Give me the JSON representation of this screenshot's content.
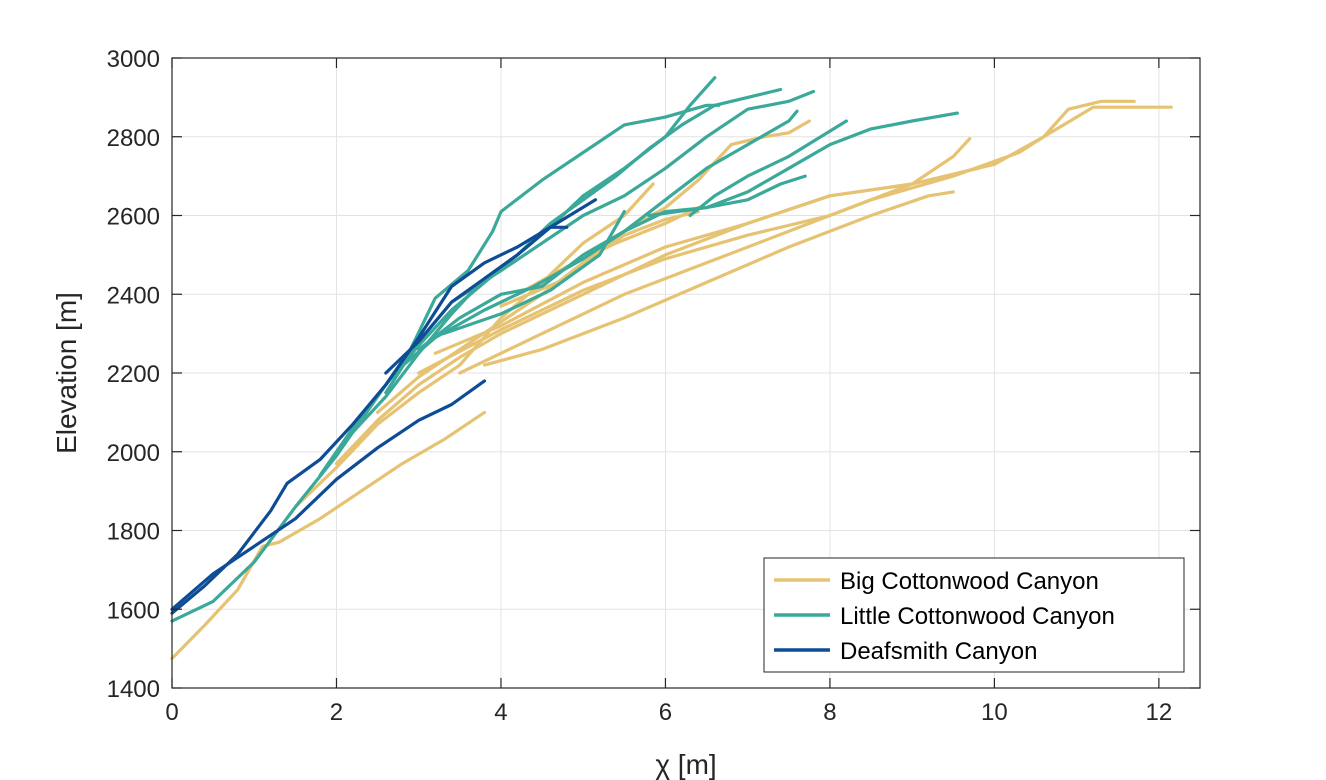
{
  "chart_data": {
    "type": "line",
    "title": "",
    "xlabel": "χ [m]",
    "ylabel": "Elevation [m]",
    "xlim": [
      0,
      12.5
    ],
    "ylim": [
      1400,
      3000
    ],
    "xticks": [
      0,
      2,
      4,
      6,
      8,
      10,
      12
    ],
    "yticks": [
      1400,
      1600,
      1800,
      2000,
      2200,
      2400,
      2600,
      2800,
      3000
    ],
    "grid": true,
    "legend_position": "bottom-right",
    "series": [
      {
        "name": "Big Cottonwood Canyon",
        "color": "#e6c372",
        "lines": [
          [
            [
              0,
              1475
            ],
            [
              0.4,
              1560
            ],
            [
              0.8,
              1650
            ],
            [
              1.1,
              1760
            ],
            [
              1.3,
              1770
            ],
            [
              1.8,
              1830
            ],
            [
              2.3,
              1900
            ],
            [
              2.8,
              1970
            ],
            [
              3.3,
              2030
            ],
            [
              3.8,
              2100
            ]
          ],
          [
            [
              1.5,
              1860
            ],
            [
              2.0,
              1960
            ],
            [
              2.5,
              2070
            ],
            [
              3.0,
              2150
            ],
            [
              3.5,
              2220
            ],
            [
              4.0,
              2340
            ],
            [
              4.5,
              2430
            ],
            [
              5.0,
              2530
            ],
            [
              5.5,
              2600
            ],
            [
              5.85,
              2680
            ]
          ],
          [
            [
              2.0,
              1970
            ],
            [
              2.5,
              2080
            ],
            [
              3.0,
              2170
            ],
            [
              3.5,
              2240
            ],
            [
              4.0,
              2300
            ],
            [
              5.0,
              2400
            ],
            [
              6.0,
              2500
            ],
            [
              7.0,
              2580
            ],
            [
              8.0,
              2650
            ],
            [
              9.0,
              2680
            ],
            [
              9.8,
              2720
            ]
          ],
          [
            [
              3.8,
              2220
            ],
            [
              4.5,
              2260
            ],
            [
              5.5,
              2340
            ],
            [
              6.5,
              2430
            ],
            [
              7.5,
              2520
            ],
            [
              8.5,
              2600
            ],
            [
              9.2,
              2650
            ],
            [
              9.5,
              2660
            ]
          ],
          [
            [
              3.5,
              2200
            ],
            [
              4.5,
              2300
            ],
            [
              5.5,
              2400
            ],
            [
              6.5,
              2480
            ],
            [
              7.5,
              2560
            ],
            [
              8.5,
              2640
            ],
            [
              9.5,
              2700
            ],
            [
              10.3,
              2760
            ],
            [
              10.6,
              2800
            ],
            [
              10.9,
              2870
            ],
            [
              11.3,
              2890
            ],
            [
              11.7,
              2890
            ]
          ],
          [
            [
              3.0,
              2200
            ],
            [
              4.0,
              2310
            ],
            [
              5.0,
              2410
            ],
            [
              6.0,
              2490
            ],
            [
              7.0,
              2550
            ],
            [
              8.0,
              2600
            ],
            [
              9.0,
              2680
            ],
            [
              9.5,
              2750
            ],
            [
              9.7,
              2795
            ]
          ],
          [
            [
              4.0,
              2370
            ],
            [
              4.8,
              2440
            ],
            [
              5.5,
              2560
            ],
            [
              6.0,
              2620
            ],
            [
              6.4,
              2690
            ],
            [
              6.8,
              2780
            ],
            [
              7.2,
              2800
            ],
            [
              7.5,
              2810
            ],
            [
              7.75,
              2840
            ]
          ],
          [
            [
              3.2,
              2250
            ],
            [
              4.0,
              2320
            ],
            [
              5.0,
              2430
            ],
            [
              6.0,
              2520
            ],
            [
              7.0,
              2580
            ],
            [
              8.0,
              2650
            ],
            [
              9.0,
              2680
            ],
            [
              10.0,
              2730
            ],
            [
              10.6,
              2800
            ],
            [
              11.2,
              2875
            ],
            [
              12.15,
              2875
            ]
          ],
          [
            [
              4.2,
              2400
            ],
            [
              4.8,
              2470
            ],
            [
              5.4,
              2530
            ],
            [
              6.0,
              2580
            ],
            [
              6.4,
              2620
            ]
          ],
          [
            [
              2.5,
              2100
            ],
            [
              3.0,
              2190
            ],
            [
              3.5,
              2260
            ],
            [
              4.0,
              2330
            ],
            [
              4.5,
              2400
            ],
            [
              5.0,
              2480
            ],
            [
              5.5,
              2550
            ],
            [
              6.0,
              2590
            ],
            [
              6.4,
              2610
            ]
          ]
        ]
      },
      {
        "name": "Little Cottonwood Canyon",
        "color": "#3aa99a",
        "lines": [
          [
            [
              0,
              1570
            ],
            [
              0.5,
              1620
            ],
            [
              1.0,
              1720
            ],
            [
              1.5,
              1860
            ],
            [
              2.0,
              1990
            ],
            [
              2.5,
              2140
            ],
            [
              2.9,
              2260
            ],
            [
              3.2,
              2390
            ],
            [
              3.6,
              2460
            ],
            [
              3.9,
              2560
            ],
            [
              4.0,
              2610
            ],
            [
              4.5,
              2690
            ],
            [
              5.0,
              2760
            ],
            [
              5.5,
              2830
            ],
            [
              6.0,
              2850
            ],
            [
              6.5,
              2880
            ],
            [
              6.65,
              2880
            ]
          ],
          [
            [
              1.8,
              1940
            ],
            [
              2.2,
              2060
            ],
            [
              2.6,
              2170
            ],
            [
              3.0,
              2270
            ],
            [
              3.4,
              2360
            ],
            [
              3.8,
              2430
            ],
            [
              4.2,
              2500
            ],
            [
              4.6,
              2570
            ],
            [
              5.0,
              2650
            ],
            [
              5.5,
              2720
            ],
            [
              6.0,
              2800
            ],
            [
              6.3,
              2880
            ],
            [
              6.6,
              2950
            ]
          ],
          [
            [
              2.2,
              2050
            ],
            [
              2.6,
              2140
            ],
            [
              3.0,
              2250
            ],
            [
              3.4,
              2350
            ],
            [
              3.8,
              2440
            ],
            [
              4.2,
              2500
            ],
            [
              4.6,
              2580
            ],
            [
              5.0,
              2640
            ],
            [
              5.4,
              2700
            ],
            [
              5.8,
              2770
            ],
            [
              6.2,
              2830
            ],
            [
              6.6,
              2880
            ],
            [
              7.0,
              2900
            ],
            [
              7.4,
              2920
            ]
          ],
          [
            [
              2.6,
              2150
            ],
            [
              3.0,
              2280
            ],
            [
              3.4,
              2380
            ],
            [
              4.0,
              2460
            ],
            [
              4.5,
              2530
            ],
            [
              5.0,
              2600
            ],
            [
              5.5,
              2650
            ],
            [
              6.0,
              2720
            ],
            [
              6.5,
              2800
            ],
            [
              7.0,
              2870
            ],
            [
              7.5,
              2890
            ],
            [
              7.8,
              2915
            ]
          ],
          [
            [
              2.7,
              2200
            ],
            [
              3.2,
              2290
            ],
            [
              3.8,
              2360
            ],
            [
              4.4,
              2420
            ],
            [
              5.0,
              2490
            ],
            [
              5.5,
              2560
            ],
            [
              6.0,
              2640
            ],
            [
              6.5,
              2720
            ],
            [
              7.0,
              2780
            ],
            [
              7.5,
              2840
            ],
            [
              7.6,
              2865
            ]
          ],
          [
            [
              3.0,
              2260
            ],
            [
              3.5,
              2340
            ],
            [
              4.0,
              2400
            ],
            [
              4.5,
              2420
            ],
            [
              5.0,
              2500
            ],
            [
              5.5,
              2560
            ],
            [
              6.0,
              2610
            ],
            [
              6.5,
              2620
            ],
            [
              7.0,
              2640
            ],
            [
              7.4,
              2680
            ],
            [
              7.7,
              2700
            ]
          ],
          [
            [
              3.3,
              2300
            ],
            [
              4.0,
              2350
            ],
            [
              4.6,
              2410
            ],
            [
              5.2,
              2500
            ],
            [
              5.5,
              2610
            ]
          ],
          [
            [
              5.8,
              2600
            ],
            [
              6.5,
              2620
            ],
            [
              7.0,
              2660
            ],
            [
              7.5,
              2720
            ],
            [
              8.0,
              2780
            ],
            [
              8.5,
              2820
            ],
            [
              9.0,
              2840
            ],
            [
              9.55,
              2860
            ]
          ],
          [
            [
              6.3,
              2600
            ],
            [
              6.6,
              2650
            ],
            [
              7.0,
              2700
            ],
            [
              7.5,
              2750
            ],
            [
              8.2,
              2840
            ]
          ]
        ]
      },
      {
        "name": "Deafsmith Canyon",
        "color": "#0e4c96",
        "lines": [
          [
            [
              0,
              1590
            ],
            [
              0.4,
              1660
            ],
            [
              0.8,
              1740
            ],
            [
              1.2,
              1850
            ],
            [
              1.4,
              1920
            ],
            [
              1.8,
              1980
            ],
            [
              2.2,
              2070
            ],
            [
              2.6,
              2170
            ],
            [
              3.0,
              2290
            ],
            [
              3.4,
              2420
            ],
            [
              3.8,
              2480
            ],
            [
              4.2,
              2520
            ],
            [
              4.6,
              2570
            ],
            [
              4.8,
              2570
            ]
          ],
          [
            [
              0,
              1600
            ],
            [
              0.5,
              1690
            ],
            [
              1.0,
              1760
            ],
            [
              1.5,
              1830
            ],
            [
              2.0,
              1930
            ],
            [
              2.5,
              2010
            ],
            [
              3.0,
              2080
            ],
            [
              3.4,
              2120
            ],
            [
              3.8,
              2180
            ]
          ],
          [
            [
              2.6,
              2200
            ],
            [
              3.0,
              2280
            ],
            [
              3.4,
              2380
            ],
            [
              3.8,
              2440
            ],
            [
              4.2,
              2500
            ],
            [
              4.6,
              2570
            ],
            [
              5.15,
              2640
            ]
          ]
        ]
      }
    ]
  }
}
